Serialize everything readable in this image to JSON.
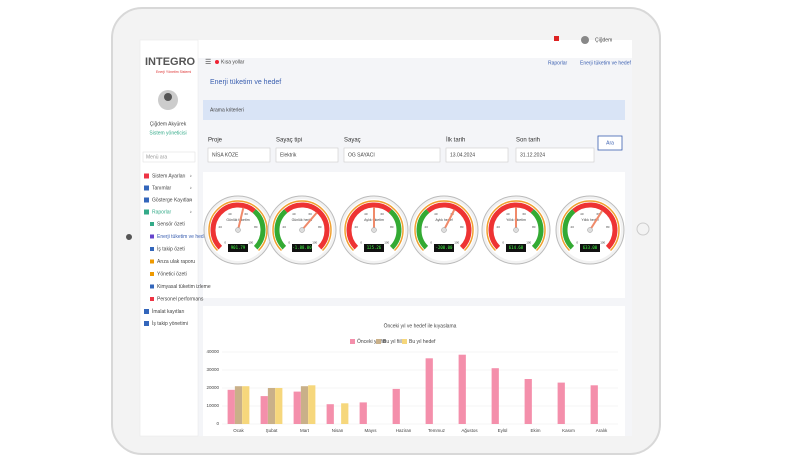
{
  "header": {
    "logo": "INTEGRO",
    "logo_sub": "Enerji Yönetim Sistemi",
    "shortcuts": "Kısa yollar",
    "user": "Çiğdem",
    "links": [
      "Raporlar",
      "Enerji tüketim ve hedef"
    ]
  },
  "sidebar": {
    "name": "Çiğdem Akyürek",
    "role": "Sistem yöneticisi",
    "search": "Menü ara",
    "items": [
      "Sistem Ayarları",
      "Tanımlar",
      "Gösterge Kayıtları",
      "Raporlar"
    ],
    "subitems": [
      "Sensör özeti",
      "Enerji tüketim ve hedef",
      "İş takip özeti",
      "Arıza ulak raporu",
      "Yönetici özeti",
      "Kimyasal tüketim izleme",
      "Personel performans"
    ],
    "after": [
      "İmalat kayıtları",
      "İş takip yönetimi"
    ]
  },
  "page": {
    "title": "Enerji tüketim ve hedef",
    "search_panel": "Arama kriterleri",
    "filters": [
      {
        "label": "Proje",
        "value": "NİSA KÖZE"
      },
      {
        "label": "Sayaç tipi",
        "value": "Elektrik"
      },
      {
        "label": "Sayaç",
        "value": "OG SAYACI"
      },
      {
        "label": "İlk tarih",
        "value": "13.04.2024"
      },
      {
        "label": "Son tarih",
        "value": "31.12.2024"
      }
    ],
    "button": "Ara"
  },
  "gauges": {
    "ticks": [
      0,
      20,
      40,
      60,
      80,
      100
    ],
    "items": [
      {
        "name": "Günlük tüketim",
        "readout": "901.79",
        "needle": 55
      },
      {
        "name": "Günlük hedef",
        "readout": "-1.88.00",
        "needle": 65
      },
      {
        "name": "Aylık tüketim",
        "readout": "125.26",
        "needle": 50
      },
      {
        "name": "Aylık hedef",
        "readout": "-200.00",
        "needle": 60
      },
      {
        "name": "Yıllık tüketim",
        "readout": "614.68",
        "needle": 50
      },
      {
        "name": "Yıllık hedef",
        "readout": "633.00",
        "needle": 62
      }
    ]
  },
  "chart_data": {
    "type": "bar",
    "title": "Önceki yıl ve hedef ile kıyaslama",
    "categories": [
      "Ocak",
      "Şubat",
      "Mart",
      "Nisan",
      "Mayıs",
      "Haziran",
      "Temmuz",
      "Ağustos",
      "Eylül",
      "Ekim",
      "Kasım",
      "Aralık"
    ],
    "series": [
      {
        "name": "Önceki yıl fiili",
        "color": "#f48fab",
        "values": [
          19000,
          15500,
          18000,
          11000,
          12000,
          19500,
          36500,
          38500,
          31000,
          25000,
          23000,
          21500
        ]
      },
      {
        "name": "Bu yıl fiili",
        "color": "#c9b089",
        "values": [
          21000,
          20000,
          21000,
          null,
          null,
          null,
          null,
          null,
          null,
          null,
          null,
          null
        ]
      },
      {
        "name": "Bu yıl hedef",
        "color": "#f6d77c",
        "values": [
          21000,
          20000,
          21500,
          11500,
          null,
          null,
          null,
          null,
          null,
          null,
          null,
          null
        ]
      }
    ],
    "ylim": [
      0,
      40000
    ],
    "yticks": [
      0,
      10000,
      20000,
      30000,
      40000
    ],
    "grid": true
  }
}
